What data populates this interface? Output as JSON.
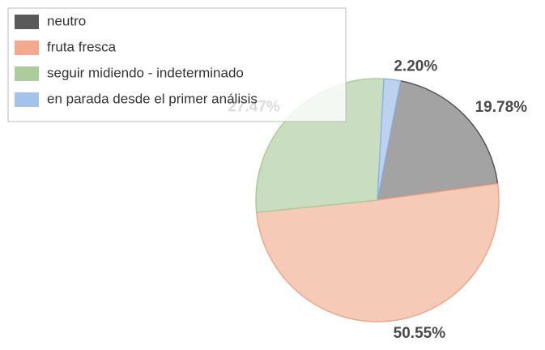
{
  "chart_data": {
    "type": "pie",
    "categories": [
      "neutro",
      "fruta fresca",
      "seguir midiendo - indeterminado",
      "en parada desde el primer análisis"
    ],
    "values": [
      19.78,
      50.55,
      27.47,
      2.2
    ],
    "value_labels": [
      "19.78%",
      "50.55%",
      "27.47%",
      "2.20%"
    ],
    "colors": [
      "#a3a3a3",
      "#f5cbb8",
      "#c9ddc1",
      "#bcd2ef"
    ],
    "legend_colors": [
      "#5a5a5a",
      "#f4a98e",
      "#aacd9a",
      "#a2c3ea"
    ],
    "legend": "upper left"
  }
}
